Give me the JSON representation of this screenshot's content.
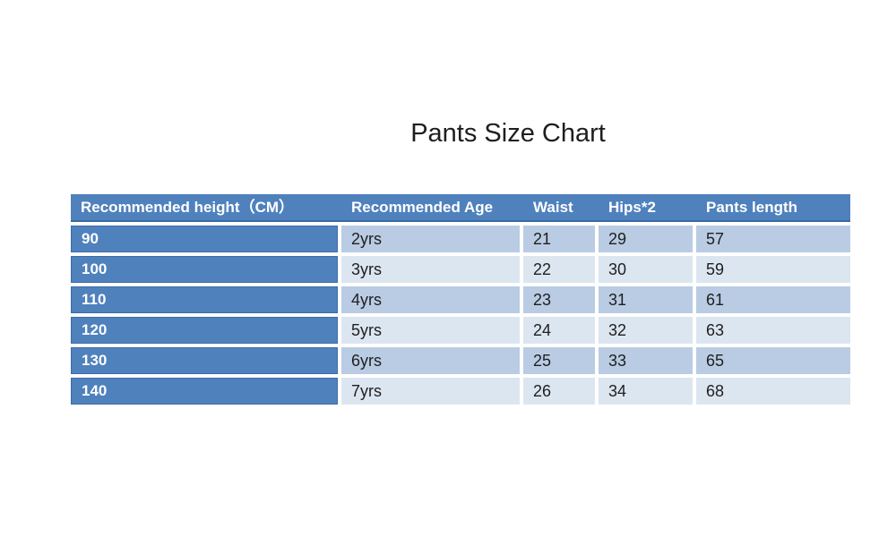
{
  "page": {
    "title": "Pants Size Chart"
  },
  "colors": {
    "header_bg": "#4f81bd",
    "header_border_bottom": "#3a6aa5",
    "first_column_bg": "#4f81bd",
    "first_column_border": "#3d6da8",
    "row_odd_bg": "#b9cce4",
    "row_even_bg": "#dce6f1",
    "header_text": "#ffffff",
    "body_text": "#1f1f1f",
    "background": "#ffffff"
  },
  "chart_data": {
    "type": "table",
    "title": "Pants Size Chart",
    "columns": [
      "Recommended height（CM）",
      "Recommended Age",
      "Waist",
      "Hips*2",
      "Pants length"
    ],
    "rows": [
      [
        "90",
        "2yrs",
        "21",
        "29",
        "57"
      ],
      [
        "100",
        "3yrs",
        "22",
        "30",
        "59"
      ],
      [
        "110",
        "4yrs",
        "23",
        "31",
        "61"
      ],
      [
        "120",
        "5yrs",
        "24",
        "32",
        "63"
      ],
      [
        "130",
        "6yrs",
        "25",
        "33",
        "65"
      ],
      [
        "140",
        "7yrs",
        "26",
        "34",
        "68"
      ]
    ]
  }
}
